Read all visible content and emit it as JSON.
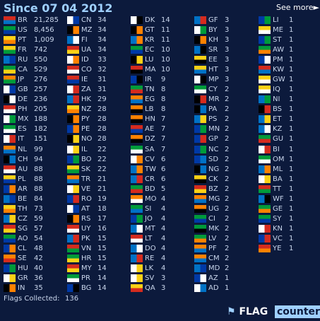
{
  "header": {
    "title": "Since 07 04 2012",
    "link": "See more►"
  },
  "columns": [
    [
      [
        "BR",
        "21,285"
      ],
      [
        "US",
        "8,456"
      ],
      [
        "PT",
        "1,009"
      ],
      [
        "FR",
        "742"
      ],
      [
        "RU",
        "550"
      ],
      [
        "CA",
        "529"
      ],
      [
        "JP",
        "276"
      ],
      [
        "GB",
        "257"
      ],
      [
        "DE",
        "236"
      ],
      [
        "PH",
        "205"
      ],
      [
        "MX",
        "188"
      ],
      [
        "ES",
        "182"
      ],
      [
        "IT",
        "151"
      ],
      [
        "NL",
        "99"
      ],
      [
        "CH",
        "94"
      ],
      [
        "AU",
        "88"
      ],
      [
        "PL",
        "88"
      ],
      [
        "AR",
        "88"
      ],
      [
        "BE",
        "84"
      ],
      [
        "TH",
        "73"
      ],
      [
        "CZ",
        "59"
      ],
      [
        "SG",
        "57"
      ],
      [
        "AO",
        "54"
      ],
      [
        "CL",
        "48"
      ],
      [
        "SE",
        "42"
      ],
      [
        "HU",
        "40"
      ],
      [
        "GR",
        "36"
      ],
      [
        "IN",
        "35"
      ]
    ],
    [
      [
        "CN",
        "34"
      ],
      [
        "MZ",
        "34"
      ],
      [
        "FI",
        "34"
      ],
      [
        "UA",
        "34"
      ],
      [
        "ID",
        "33"
      ],
      [
        "CO",
        "32"
      ],
      [
        "IE",
        "31"
      ],
      [
        "ZA",
        "31"
      ],
      [
        "HK",
        "29"
      ],
      [
        "NZ",
        "28"
      ],
      [
        "PY",
        "28"
      ],
      [
        "PE",
        "28"
      ],
      [
        "NO",
        "28"
      ],
      [
        "IL",
        "22"
      ],
      [
        "BO",
        "22"
      ],
      [
        "SK",
        "22"
      ],
      [
        "TR",
        "21"
      ],
      [
        "VE",
        "21"
      ],
      [
        "RO",
        "19"
      ],
      [
        "AT",
        "18"
      ],
      [
        "RS",
        "17"
      ],
      [
        "UY",
        "16"
      ],
      [
        "PK",
        "15"
      ],
      [
        "VN",
        "15"
      ],
      [
        "HR",
        "15"
      ],
      [
        "MY",
        "14"
      ],
      [
        "PR",
        "14"
      ],
      [
        "BG",
        "14"
      ]
    ],
    [
      [
        "DK",
        "14"
      ],
      [
        "GT",
        "11"
      ],
      [
        "KR",
        "11"
      ],
      [
        "EC",
        "10"
      ],
      [
        "LU",
        "10"
      ],
      [
        "MA",
        "10"
      ],
      [
        "IR",
        "9"
      ],
      [
        "TN",
        "8"
      ],
      [
        "EG",
        "8"
      ],
      [
        "LB",
        "8"
      ],
      [
        "HN",
        "7"
      ],
      [
        "AE",
        "7"
      ],
      [
        "DZ",
        "7"
      ],
      [
        "SA",
        "7"
      ],
      [
        "CV",
        "6"
      ],
      [
        "TW",
        "6"
      ],
      [
        "CR",
        "6"
      ],
      [
        "BD",
        "5"
      ],
      [
        "MO",
        "4"
      ],
      [
        "SI",
        "4"
      ],
      [
        "JO",
        "4"
      ],
      [
        "MT",
        "4"
      ],
      [
        "LT",
        "4"
      ],
      [
        "DO",
        "4"
      ],
      [
        "RE",
        "4"
      ],
      [
        "LK",
        "4"
      ],
      [
        "SV",
        "3"
      ],
      [
        "QA",
        "3"
      ]
    ],
    [
      [
        "GF",
        "3"
      ],
      [
        "BY",
        "3"
      ],
      [
        "KH",
        "3"
      ],
      [
        "SR",
        "3"
      ],
      [
        "EE",
        "3"
      ],
      [
        "HT",
        "3"
      ],
      [
        "MP",
        "3"
      ],
      [
        "CY",
        "2"
      ],
      [
        "MR",
        "2"
      ],
      [
        "PA",
        "2"
      ],
      [
        "PS",
        "2"
      ],
      [
        "MN",
        "2"
      ],
      [
        "GP",
        "2"
      ],
      [
        "NC",
        "2"
      ],
      [
        "SD",
        "2"
      ],
      [
        "NG",
        "2"
      ],
      [
        "CK",
        "2"
      ],
      [
        "BZ",
        "2"
      ],
      [
        "MG",
        "2"
      ],
      [
        "UG",
        "2"
      ],
      [
        "CI",
        "2"
      ],
      [
        "MK",
        "2"
      ],
      [
        "LV",
        "2"
      ],
      [
        "PF",
        "2"
      ],
      [
        "CM",
        "2"
      ],
      [
        "MD",
        "2"
      ],
      [
        "AZ",
        "1"
      ],
      [
        "AD",
        "1"
      ]
    ],
    [
      [
        "LI",
        "1"
      ],
      [
        "ME",
        "1"
      ],
      [
        "ST",
        "1"
      ],
      [
        "AW",
        "1"
      ],
      [
        "PM",
        "1"
      ],
      [
        "KW",
        "1"
      ],
      [
        "GW",
        "1"
      ],
      [
        "IQ",
        "1"
      ],
      [
        "NI",
        "1"
      ],
      [
        "BS",
        "1"
      ],
      [
        "ET",
        "1"
      ],
      [
        "KZ",
        "1"
      ],
      [
        "GU",
        "1"
      ],
      [
        "BI",
        "1"
      ],
      [
        "OM",
        "1"
      ],
      [
        "ML",
        "1"
      ],
      [
        "BA",
        "1"
      ],
      [
        "TT",
        "1"
      ],
      [
        "WF",
        "1"
      ],
      [
        "GE",
        "1"
      ],
      [
        "SY",
        "1"
      ],
      [
        "KN",
        "1"
      ],
      [
        "VC",
        "1"
      ],
      [
        "YE",
        "1"
      ]
    ]
  ],
  "footer": {
    "label": "Flags Collected:",
    "total": "136"
  },
  "logo": {
    "brand": "FLAG",
    "product": "counter"
  }
}
